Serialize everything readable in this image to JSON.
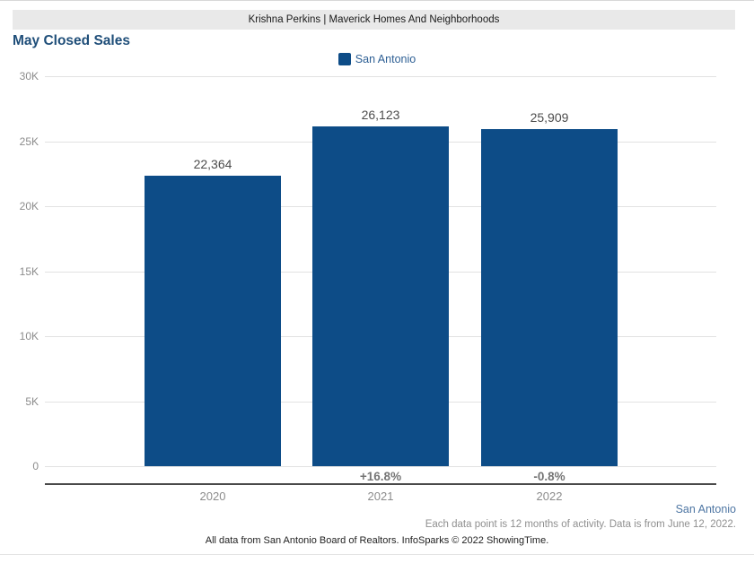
{
  "header": {
    "banner_text": "Krishna Perkins | Maverick Homes And Neighborhoods"
  },
  "title": "May Closed Sales",
  "legend": {
    "label": "San Antonio",
    "swatch_color": "#0d4c87"
  },
  "chart_data": {
    "type": "bar",
    "title": "May Closed Sales",
    "categories": [
      "2020",
      "2021",
      "2022"
    ],
    "series": [
      {
        "name": "San Antonio",
        "values": [
          22364,
          26123,
          25909
        ]
      }
    ],
    "value_labels": [
      "22,364",
      "26,123",
      "25,909"
    ],
    "pct_change_labels": [
      "",
      "+16.8%",
      "-0.8%"
    ],
    "ylim": [
      0,
      30000
    ],
    "yticks": [
      {
        "value": 0,
        "label": "0"
      },
      {
        "value": 5000,
        "label": "5K"
      },
      {
        "value": 10000,
        "label": "10K"
      },
      {
        "value": 15000,
        "label": "15K"
      },
      {
        "value": 20000,
        "label": "20K"
      },
      {
        "value": 25000,
        "label": "25K"
      },
      {
        "value": 30000,
        "label": "30K"
      }
    ],
    "grid": true,
    "legend_position": "top-center",
    "bar_color": "#0d4c87"
  },
  "footnotes": {
    "region_label": "San Antonio",
    "data_note": "Each data point is 12 months of activity. Data is from June 12, 2022.",
    "attribution": "All data from San Antonio Board of Realtors. InfoSparks © 2022 ShowingTime."
  },
  "colors": {
    "bar": "#0d4c87",
    "title": "#1f4e79",
    "banner_bg": "#e9e9e9",
    "gridline": "#e2e2e2",
    "axis_text": "#8c8c8c",
    "value_text": "#4c4c4c",
    "pct_text": "#757575"
  }
}
